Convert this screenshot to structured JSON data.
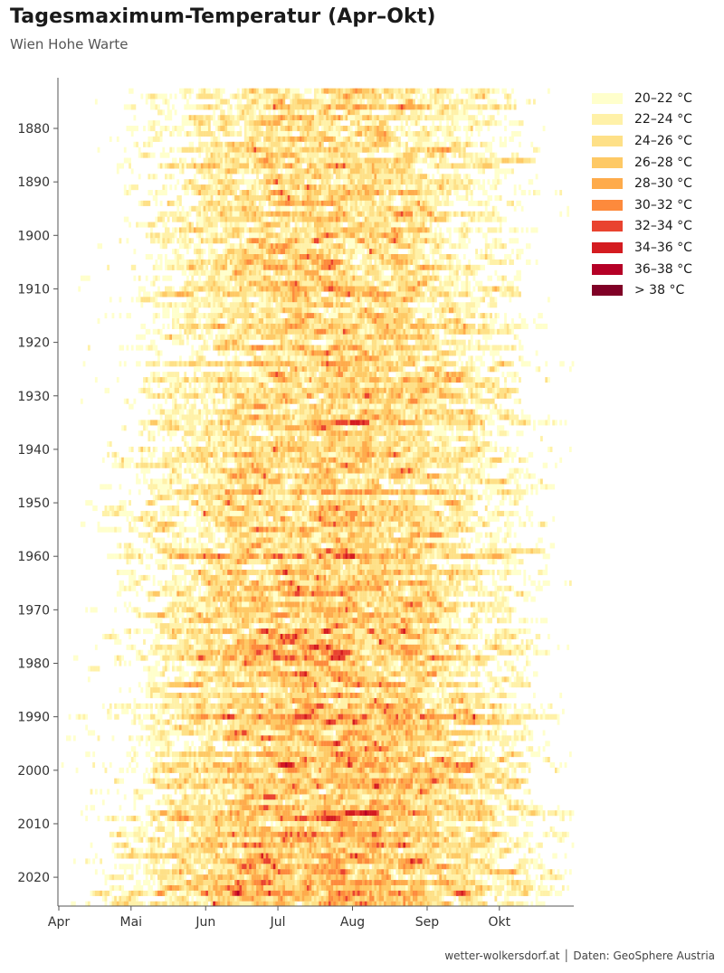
{
  "title": "Tagesmaximum-Temperatur (Apr–Okt)",
  "subtitle": "Wien Hohe Warte",
  "footer": "wetter-wolkersdorf.at │ Daten: GeoSphere Austria",
  "chart_data": {
    "type": "heatmap",
    "title": "Tagesmaximum-Temperatur (Apr–Okt)",
    "subtitle": "Wien Hohe Warte",
    "x_axis": {
      "type": "date (day of season)",
      "range": [
        "Apr 1",
        "Oct 31"
      ],
      "ticks": [
        {
          "label": "Apr",
          "day": 0
        },
        {
          "label": "Mai",
          "day": 30
        },
        {
          "label": "Jun",
          "day": 61
        },
        {
          "label": "Jul",
          "day": 91
        },
        {
          "label": "Aug",
          "day": 122
        },
        {
          "label": "Sep",
          "day": 153
        },
        {
          "label": "Okt",
          "day": 183
        }
      ]
    },
    "y_axis": {
      "type": "year",
      "range": [
        1873,
        2025
      ],
      "inverted": true,
      "ticks": [
        1880,
        1890,
        1900,
        1910,
        1920,
        1930,
        1940,
        1950,
        1960,
        1970,
        1980,
        1990,
        2000,
        2010,
        2020
      ]
    },
    "value": "daily maximum temperature (°C), shown only for days at or above 20 °C",
    "seasonal_peak_approx_c": 26,
    "warming_trend_approx_c_per_century": 2,
    "bins": [
      {
        "label": "20–22 °C",
        "min": 20,
        "max": 22,
        "color": "#ffffcc"
      },
      {
        "label": "22–24 °C",
        "min": 22,
        "max": 24,
        "color": "#fff1a8"
      },
      {
        "label": "24–26 °C",
        "min": 24,
        "max": 26,
        "color": "#fee087"
      },
      {
        "label": "26–28 °C",
        "min": 26,
        "max": 28,
        "color": "#fec965"
      },
      {
        "label": "28–30 °C",
        "min": 28,
        "max": 30,
        "color": "#feab4b"
      },
      {
        "label": "30–32 °C",
        "min": 30,
        "max": 32,
        "color": "#fd8a3c"
      },
      {
        "label": "32–34 °C",
        "min": 32,
        "max": 34,
        "color": "#e9432f"
      },
      {
        "label": "34–36 °C",
        "min": 34,
        "max": 36,
        "color": "#d41b20"
      },
      {
        "label": "36–38 °C",
        "min": 36,
        "max": 38,
        "color": "#b50026"
      },
      {
        "label": "> 38 °C",
        "min": 38,
        "max": null,
        "color": "#800026"
      }
    ],
    "legend_position": "right",
    "grid": false
  }
}
